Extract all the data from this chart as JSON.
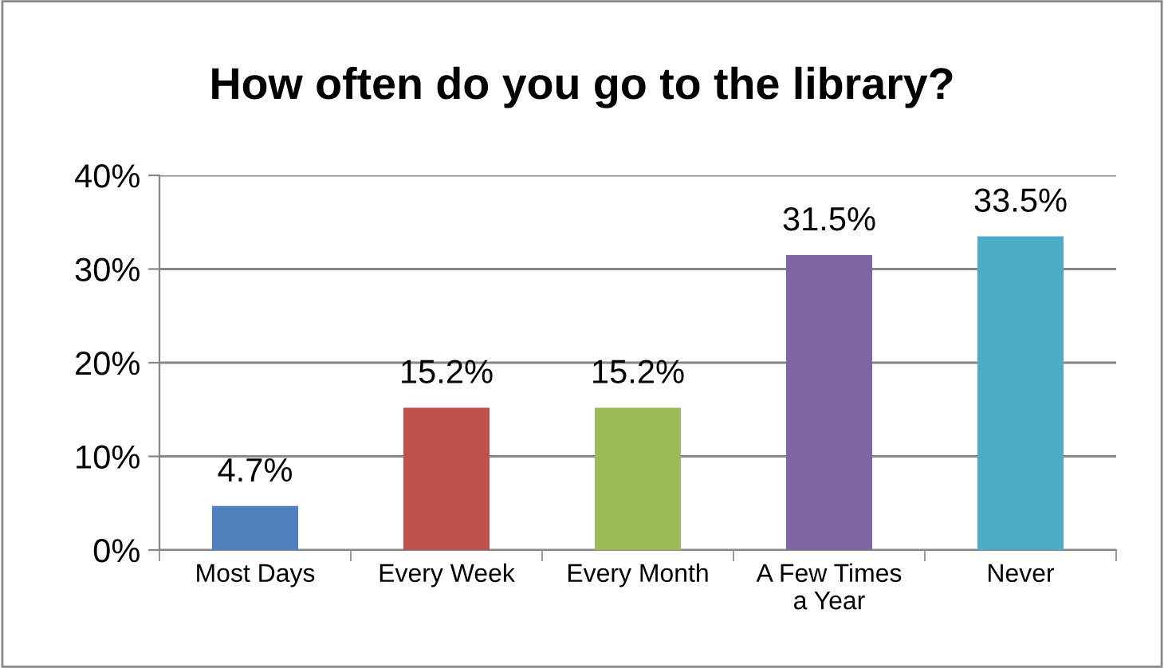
{
  "chart_data": {
    "type": "bar",
    "title": "How often do you go to the library?",
    "categories": [
      "Most Days",
      "Every Week",
      "Every Month",
      "A Few Times\na Year",
      "Never"
    ],
    "values": [
      4.7,
      15.2,
      15.2,
      31.5,
      33.5
    ],
    "value_labels": [
      "4.7%",
      "15.2%",
      "15.2%",
      "31.5%",
      "33.5%"
    ],
    "colors": [
      "#4f81bd",
      "#c0504d",
      "#9bbb59",
      "#8064a2",
      "#4bacc6"
    ],
    "ylim": [
      0,
      40
    ],
    "yticks": [
      {
        "value": 0,
        "label": "0%"
      },
      {
        "value": 10,
        "label": "10%"
      },
      {
        "value": 20,
        "label": "20%"
      },
      {
        "value": 30,
        "label": "30%"
      },
      {
        "value": 40,
        "label": "40%"
      }
    ],
    "grid": "y",
    "legend": false
  }
}
